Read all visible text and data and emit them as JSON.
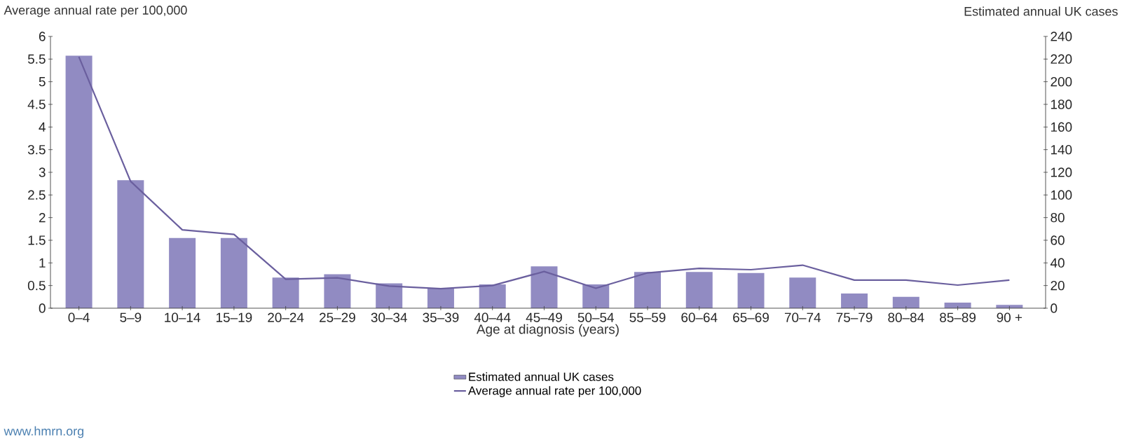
{
  "chart_data": {
    "type": "bar",
    "xlabel": "Age at diagnosis (years)",
    "ylabel": "Average annual rate per 100,000",
    "y2label": "Estimated annual UK cases",
    "categories": [
      "0–4",
      "5–9",
      "10–14",
      "15–19",
      "20–24",
      "25–29",
      "30–34",
      "35–39",
      "40–44",
      "45–49",
      "50–54",
      "55–59",
      "60–64",
      "65–69",
      "70–74",
      "75–79",
      "80–84",
      "85–89",
      "90 +"
    ],
    "series": [
      {
        "name": "Estimated annual UK cases",
        "axis": "y2",
        "color": "#918bc2",
        "values": [
          223,
          113,
          62,
          62,
          27,
          30,
          22,
          18,
          21,
          37,
          21,
          32,
          32,
          31,
          27,
          13,
          10,
          5,
          3
        ]
      },
      {
        "name": "Average annual rate per 100,000",
        "type": "line",
        "axis": "y",
        "color": "#6a5f9e",
        "values": [
          5.55,
          2.8,
          1.73,
          1.63,
          0.64,
          0.67,
          0.49,
          0.43,
          0.5,
          0.81,
          0.44,
          0.78,
          0.88,
          0.85,
          0.95,
          0.62,
          0.62,
          0.51,
          0.62
        ]
      }
    ],
    "ylim": [
      0,
      6
    ],
    "yticks": [
      0,
      0.5,
      1,
      1.5,
      2,
      2.5,
      3,
      3.5,
      4,
      4.5,
      5,
      5.5,
      6
    ],
    "y2lim": [
      0,
      240
    ],
    "y2ticks": [
      0,
      20,
      40,
      60,
      80,
      100,
      120,
      140,
      160,
      180,
      200,
      220,
      240
    ],
    "legend": "bottom",
    "marker": "none",
    "annotations": [
      "www.hmrn.org"
    ]
  }
}
